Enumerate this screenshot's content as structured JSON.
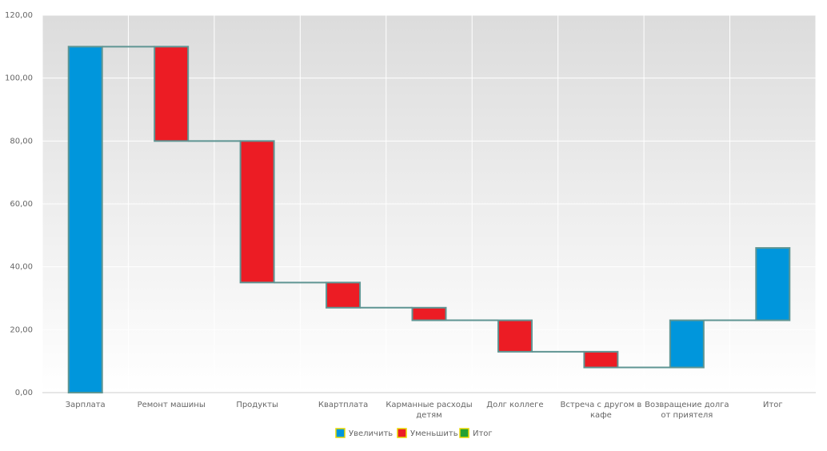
{
  "chart_data": {
    "type": "waterfall",
    "categories": [
      "Зарплата",
      "Ремонт машины",
      "Продукты",
      "Квартплата",
      "Карманные расходы детям",
      "Долг коллеге",
      "Встреча с другом в кафе",
      "Возвращение долга от приятеля",
      "Итог"
    ],
    "values": [
      110,
      -30,
      -45,
      -8,
      -4,
      -10,
      -5,
      15,
      23
    ],
    "ylim": [
      0,
      120
    ],
    "yticks": [
      {
        "value": 0,
        "label": "0,00"
      },
      {
        "value": 20,
        "label": "20,00"
      },
      {
        "value": 40,
        "label": "40,00"
      },
      {
        "value": 60,
        "label": "60,00"
      },
      {
        "value": 80,
        "label": "80,00"
      },
      {
        "value": 100,
        "label": "100,00"
      },
      {
        "value": 120,
        "label": "120,00"
      }
    ],
    "grid": true,
    "legend": [
      {
        "name": "Увеличить",
        "color": "#0096dc"
      },
      {
        "name": "Уменьшить",
        "color": "#ec1c24"
      },
      {
        "name": "Итог",
        "color": "#22a033"
      }
    ]
  }
}
